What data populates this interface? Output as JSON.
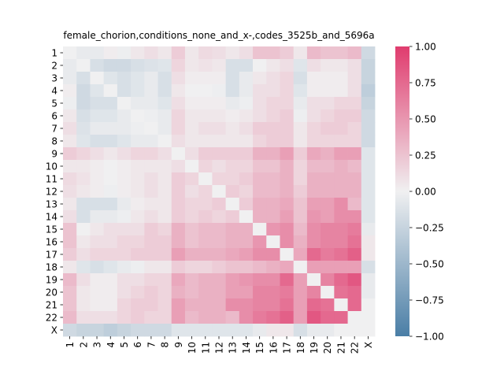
{
  "chart_data": {
    "type": "heatmap",
    "title": "female_chorion,conditions_none_and_x-,codes_3525b_and_5696a",
    "xlabel": "",
    "ylabel": "",
    "x_categories": [
      "1",
      "2",
      "3",
      "4",
      "5",
      "6",
      "7",
      "8",
      "9",
      "10",
      "11",
      "12",
      "13",
      "14",
      "15",
      "16",
      "17",
      "18",
      "19",
      "20",
      "21",
      "22",
      "X"
    ],
    "y_categories": [
      "1",
      "2",
      "3",
      "4",
      "5",
      "6",
      "7",
      "8",
      "9",
      "10",
      "11",
      "12",
      "13",
      "14",
      "15",
      "16",
      "17",
      "18",
      "19",
      "20",
      "21",
      "22",
      "X"
    ],
    "colorbar": {
      "vmin": -1.0,
      "vmax": 1.0,
      "ticks": [
        "1.00",
        "0.75",
        "0.50",
        "0.25",
        "0.00",
        "−0.25",
        "−0.50",
        "−0.75",
        "−1.00"
      ],
      "tick_values": [
        1.0,
        0.75,
        0.5,
        0.25,
        0.0,
        -0.25,
        -0.5,
        -0.75,
        -1.0
      ],
      "low_color": "#4a7ea6",
      "mid_color": "#f0f0f1",
      "high_color": "#e03c6e"
    },
    "values": [
      [
        0.0,
        -0.05,
        -0.05,
        0.02,
        -0.02,
        0.05,
        0.1,
        0.05,
        0.2,
        0.05,
        0.12,
        0.1,
        0.05,
        0.1,
        0.25,
        0.25,
        0.2,
        0.05,
        0.3,
        0.25,
        0.25,
        0.3,
        -0.2
      ],
      [
        -0.05,
        0.0,
        -0.15,
        -0.2,
        -0.2,
        -0.15,
        -0.12,
        -0.1,
        0.15,
        0.05,
        0.08,
        0.05,
        -0.15,
        -0.15,
        0.0,
        0.05,
        0.1,
        -0.1,
        0.1,
        0.05,
        0.05,
        0.1,
        -0.25
      ],
      [
        -0.05,
        -0.15,
        0.0,
        -0.1,
        -0.15,
        -0.1,
        -0.05,
        -0.15,
        0.1,
        0.02,
        0.02,
        0.02,
        -0.15,
        -0.05,
        0.05,
        0.1,
        0.15,
        -0.15,
        0.02,
        0.02,
        0.02,
        0.1,
        -0.25
      ],
      [
        0.02,
        -0.2,
        -0.1,
        0.0,
        -0.15,
        -0.1,
        -0.05,
        -0.15,
        0.05,
        0.0,
        0.0,
        -0.02,
        -0.15,
        -0.05,
        0.1,
        0.1,
        0.15,
        -0.1,
        0.02,
        0.02,
        0.02,
        0.1,
        -0.3
      ],
      [
        -0.02,
        -0.2,
        -0.15,
        -0.15,
        0.0,
        -0.05,
        -0.05,
        -0.1,
        0.1,
        0.02,
        0.02,
        0.02,
        -0.05,
        -0.02,
        0.1,
        0.15,
        0.15,
        -0.05,
        0.1,
        0.1,
        0.15,
        0.15,
        -0.25
      ],
      [
        0.05,
        -0.15,
        -0.1,
        -0.1,
        -0.05,
        0.0,
        -0.02,
        -0.05,
        0.15,
        0.05,
        0.05,
        0.05,
        0.02,
        0.05,
        0.1,
        0.15,
        0.2,
        -0.02,
        0.1,
        0.15,
        0.2,
        0.2,
        -0.2
      ],
      [
        0.1,
        -0.12,
        -0.05,
        -0.05,
        -0.05,
        -0.02,
        0.0,
        -0.05,
        0.15,
        0.05,
        0.1,
        0.1,
        0.05,
        0.1,
        0.2,
        0.2,
        0.2,
        0.05,
        0.15,
        0.2,
        0.2,
        0.15,
        -0.2
      ],
      [
        0.05,
        -0.1,
        -0.15,
        -0.15,
        -0.1,
        -0.05,
        -0.05,
        0.0,
        0.1,
        0.05,
        0.05,
        0.05,
        0.05,
        0.05,
        0.15,
        0.2,
        0.2,
        0.05,
        0.15,
        0.15,
        0.15,
        0.15,
        -0.2
      ],
      [
        0.2,
        0.15,
        0.1,
        0.05,
        0.1,
        0.15,
        0.15,
        0.1,
        0.0,
        0.1,
        0.2,
        0.2,
        0.2,
        0.2,
        0.35,
        0.35,
        0.45,
        0.2,
        0.4,
        0.35,
        0.45,
        0.45,
        -0.1
      ],
      [
        0.05,
        0.05,
        0.02,
        0.0,
        0.02,
        0.05,
        0.05,
        0.05,
        0.1,
        0.0,
        0.15,
        0.1,
        0.15,
        0.15,
        0.25,
        0.25,
        0.35,
        0.15,
        0.3,
        0.3,
        0.35,
        0.3,
        -0.1
      ],
      [
        0.12,
        0.08,
        0.02,
        0.0,
        0.02,
        0.05,
        0.1,
        0.05,
        0.2,
        0.15,
        0.0,
        0.15,
        0.15,
        0.2,
        0.3,
        0.3,
        0.35,
        0.15,
        0.35,
        0.35,
        0.35,
        0.35,
        -0.1
      ],
      [
        0.1,
        0.05,
        0.02,
        -0.02,
        0.02,
        0.05,
        0.1,
        0.05,
        0.2,
        0.1,
        0.15,
        0.0,
        0.2,
        0.15,
        0.3,
        0.3,
        0.35,
        0.2,
        0.35,
        0.35,
        0.35,
        0.35,
        -0.1
      ],
      [
        0.05,
        -0.15,
        -0.15,
        -0.15,
        -0.05,
        0.02,
        0.05,
        0.05,
        0.2,
        0.15,
        0.15,
        0.2,
        0.0,
        0.2,
        0.35,
        0.35,
        0.4,
        0.25,
        0.45,
        0.45,
        0.55,
        0.3,
        -0.1
      ],
      [
        0.1,
        -0.15,
        -0.05,
        -0.05,
        -0.02,
        0.05,
        0.1,
        0.05,
        0.2,
        0.15,
        0.2,
        0.15,
        0.2,
        0.0,
        0.35,
        0.35,
        0.45,
        0.25,
        0.5,
        0.45,
        0.55,
        0.55,
        -0.1
      ],
      [
        0.25,
        0.0,
        0.05,
        0.1,
        0.1,
        0.1,
        0.2,
        0.15,
        0.35,
        0.25,
        0.3,
        0.3,
        0.35,
        0.35,
        0.0,
        0.5,
        0.55,
        0.3,
        0.55,
        0.6,
        0.6,
        0.65,
        -0.05
      ],
      [
        0.25,
        0.05,
        0.1,
        0.1,
        0.15,
        0.15,
        0.2,
        0.2,
        0.35,
        0.25,
        0.3,
        0.3,
        0.35,
        0.35,
        0.5,
        0.0,
        0.55,
        0.35,
        0.55,
        0.6,
        0.6,
        0.7,
        0.05
      ],
      [
        0.2,
        0.1,
        0.15,
        0.15,
        0.15,
        0.2,
        0.2,
        0.2,
        0.45,
        0.35,
        0.35,
        0.35,
        0.4,
        0.45,
        0.55,
        0.55,
        0.0,
        0.4,
        0.75,
        0.65,
        0.7,
        0.8,
        0.05
      ],
      [
        0.05,
        -0.1,
        -0.15,
        -0.1,
        -0.05,
        -0.02,
        0.05,
        0.05,
        0.2,
        0.15,
        0.15,
        0.2,
        0.25,
        0.25,
        0.3,
        0.35,
        0.4,
        0.0,
        0.45,
        0.45,
        0.45,
        0.45,
        -0.15
      ],
      [
        0.3,
        0.1,
        0.02,
        0.02,
        0.1,
        0.1,
        0.15,
        0.15,
        0.4,
        0.3,
        0.35,
        0.35,
        0.45,
        0.5,
        0.55,
        0.55,
        0.75,
        0.45,
        0.0,
        0.6,
        0.75,
        0.85,
        -0.05
      ],
      [
        0.25,
        0.05,
        0.02,
        0.02,
        0.1,
        0.15,
        0.2,
        0.15,
        0.35,
        0.3,
        0.35,
        0.35,
        0.45,
        0.45,
        0.6,
        0.6,
        0.65,
        0.45,
        0.6,
        0.0,
        0.7,
        0.75,
        -0.05
      ],
      [
        0.25,
        0.05,
        0.02,
        0.02,
        0.15,
        0.2,
        0.2,
        0.15,
        0.45,
        0.35,
        0.35,
        0.35,
        0.55,
        0.55,
        0.6,
        0.6,
        0.7,
        0.45,
        0.75,
        0.7,
        0.0,
        0.75,
        0.0
      ],
      [
        0.3,
        0.1,
        0.1,
        0.1,
        0.15,
        0.2,
        0.15,
        0.15,
        0.45,
        0.3,
        0.35,
        0.35,
        0.3,
        0.55,
        0.65,
        0.7,
        0.8,
        0.45,
        0.85,
        0.75,
        0.75,
        0.0,
        0.0
      ],
      [
        -0.2,
        -0.25,
        -0.25,
        -0.3,
        -0.25,
        -0.2,
        -0.2,
        -0.2,
        -0.1,
        -0.1,
        -0.1,
        -0.1,
        -0.1,
        -0.1,
        -0.05,
        0.05,
        0.05,
        -0.15,
        -0.05,
        -0.05,
        0.0,
        0.0,
        0.0
      ]
    ]
  }
}
